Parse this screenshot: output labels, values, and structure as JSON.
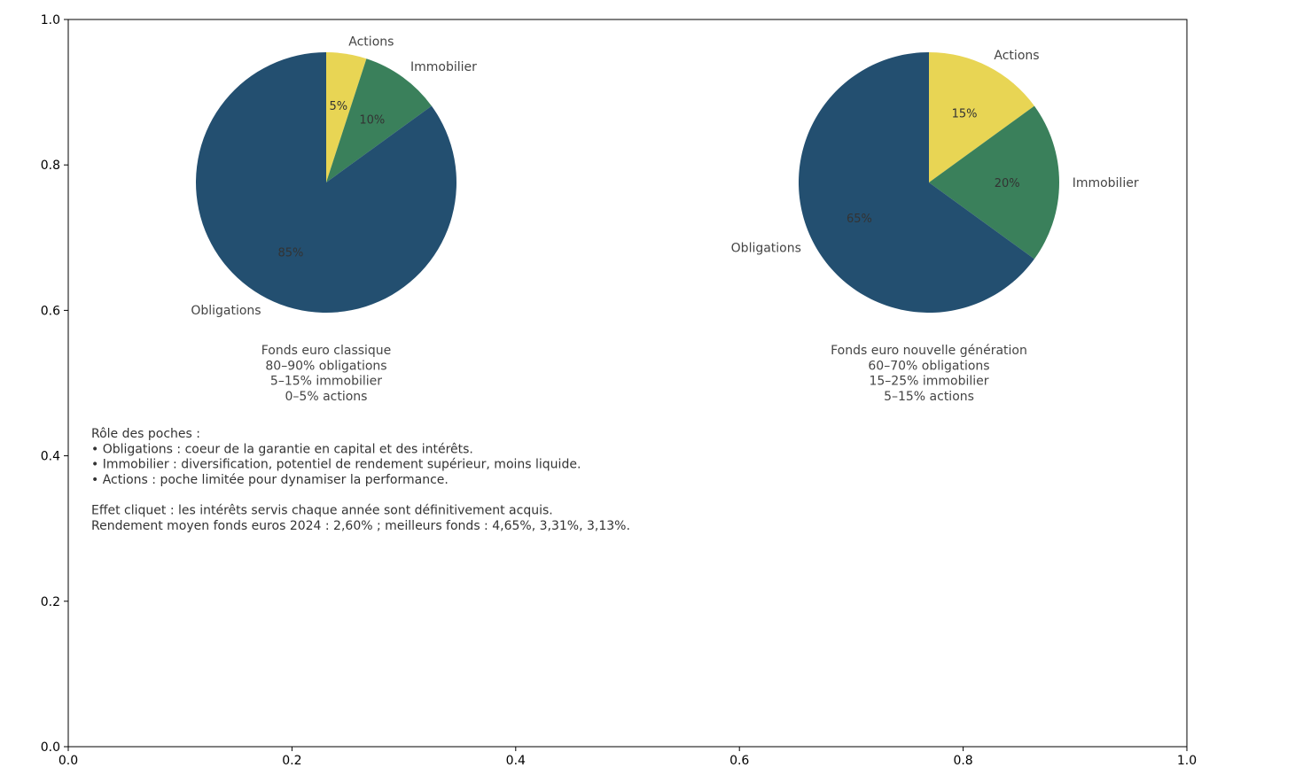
{
  "chart_data": {
    "type": "pie",
    "axes": {
      "xlim": [
        0.0,
        1.0
      ],
      "ylim": [
        0.0,
        1.0
      ],
      "x_ticks": [
        "0.0",
        "0.2",
        "0.4",
        "0.6",
        "0.8",
        "1.0"
      ],
      "y_ticks": [
        "0.0",
        "0.2",
        "0.4",
        "0.6",
        "0.8",
        "1.0"
      ]
    },
    "colors": {
      "Obligations": "#234f70",
      "Actions": "#e8d554",
      "Immobilier": "#3a805b"
    },
    "pies": [
      {
        "caption": [
          "Fonds euro classique",
          "80–90% obligations",
          "5–15% immobilier",
          "0–5% actions"
        ],
        "slices": [
          {
            "label": "Actions",
            "value": 5,
            "pct_label": "5%"
          },
          {
            "label": "Immobilier",
            "value": 10,
            "pct_label": "10%"
          },
          {
            "label": "Obligations",
            "value": 85,
            "pct_label": "85%"
          }
        ]
      },
      {
        "caption": [
          "Fonds euro nouvelle génération",
          "60–70% obligations",
          "15–25% immobilier",
          "5–15% actions"
        ],
        "slices": [
          {
            "label": "Actions",
            "value": 15,
            "pct_label": "15%"
          },
          {
            "label": "Immobilier",
            "value": 20,
            "pct_label": "20%"
          },
          {
            "label": "Obligations",
            "value": 65,
            "pct_label": "65%"
          }
        ]
      }
    ],
    "notes": [
      "Rôle des poches :",
      "• Obligations : coeur de la garantie en capital et des intérêts.",
      "• Immobilier : diversification, potentiel de rendement supérieur, moins liquide.",
      "• Actions : poche limitée pour dynamiser la performance.",
      "",
      "Effet cliquet : les intérêts servis chaque année sont définitivement acquis.",
      "Rendement moyen fonds euros 2024 : 2,60% ; meilleurs fonds : 4,65%, 3,31%, 3,13%."
    ]
  }
}
